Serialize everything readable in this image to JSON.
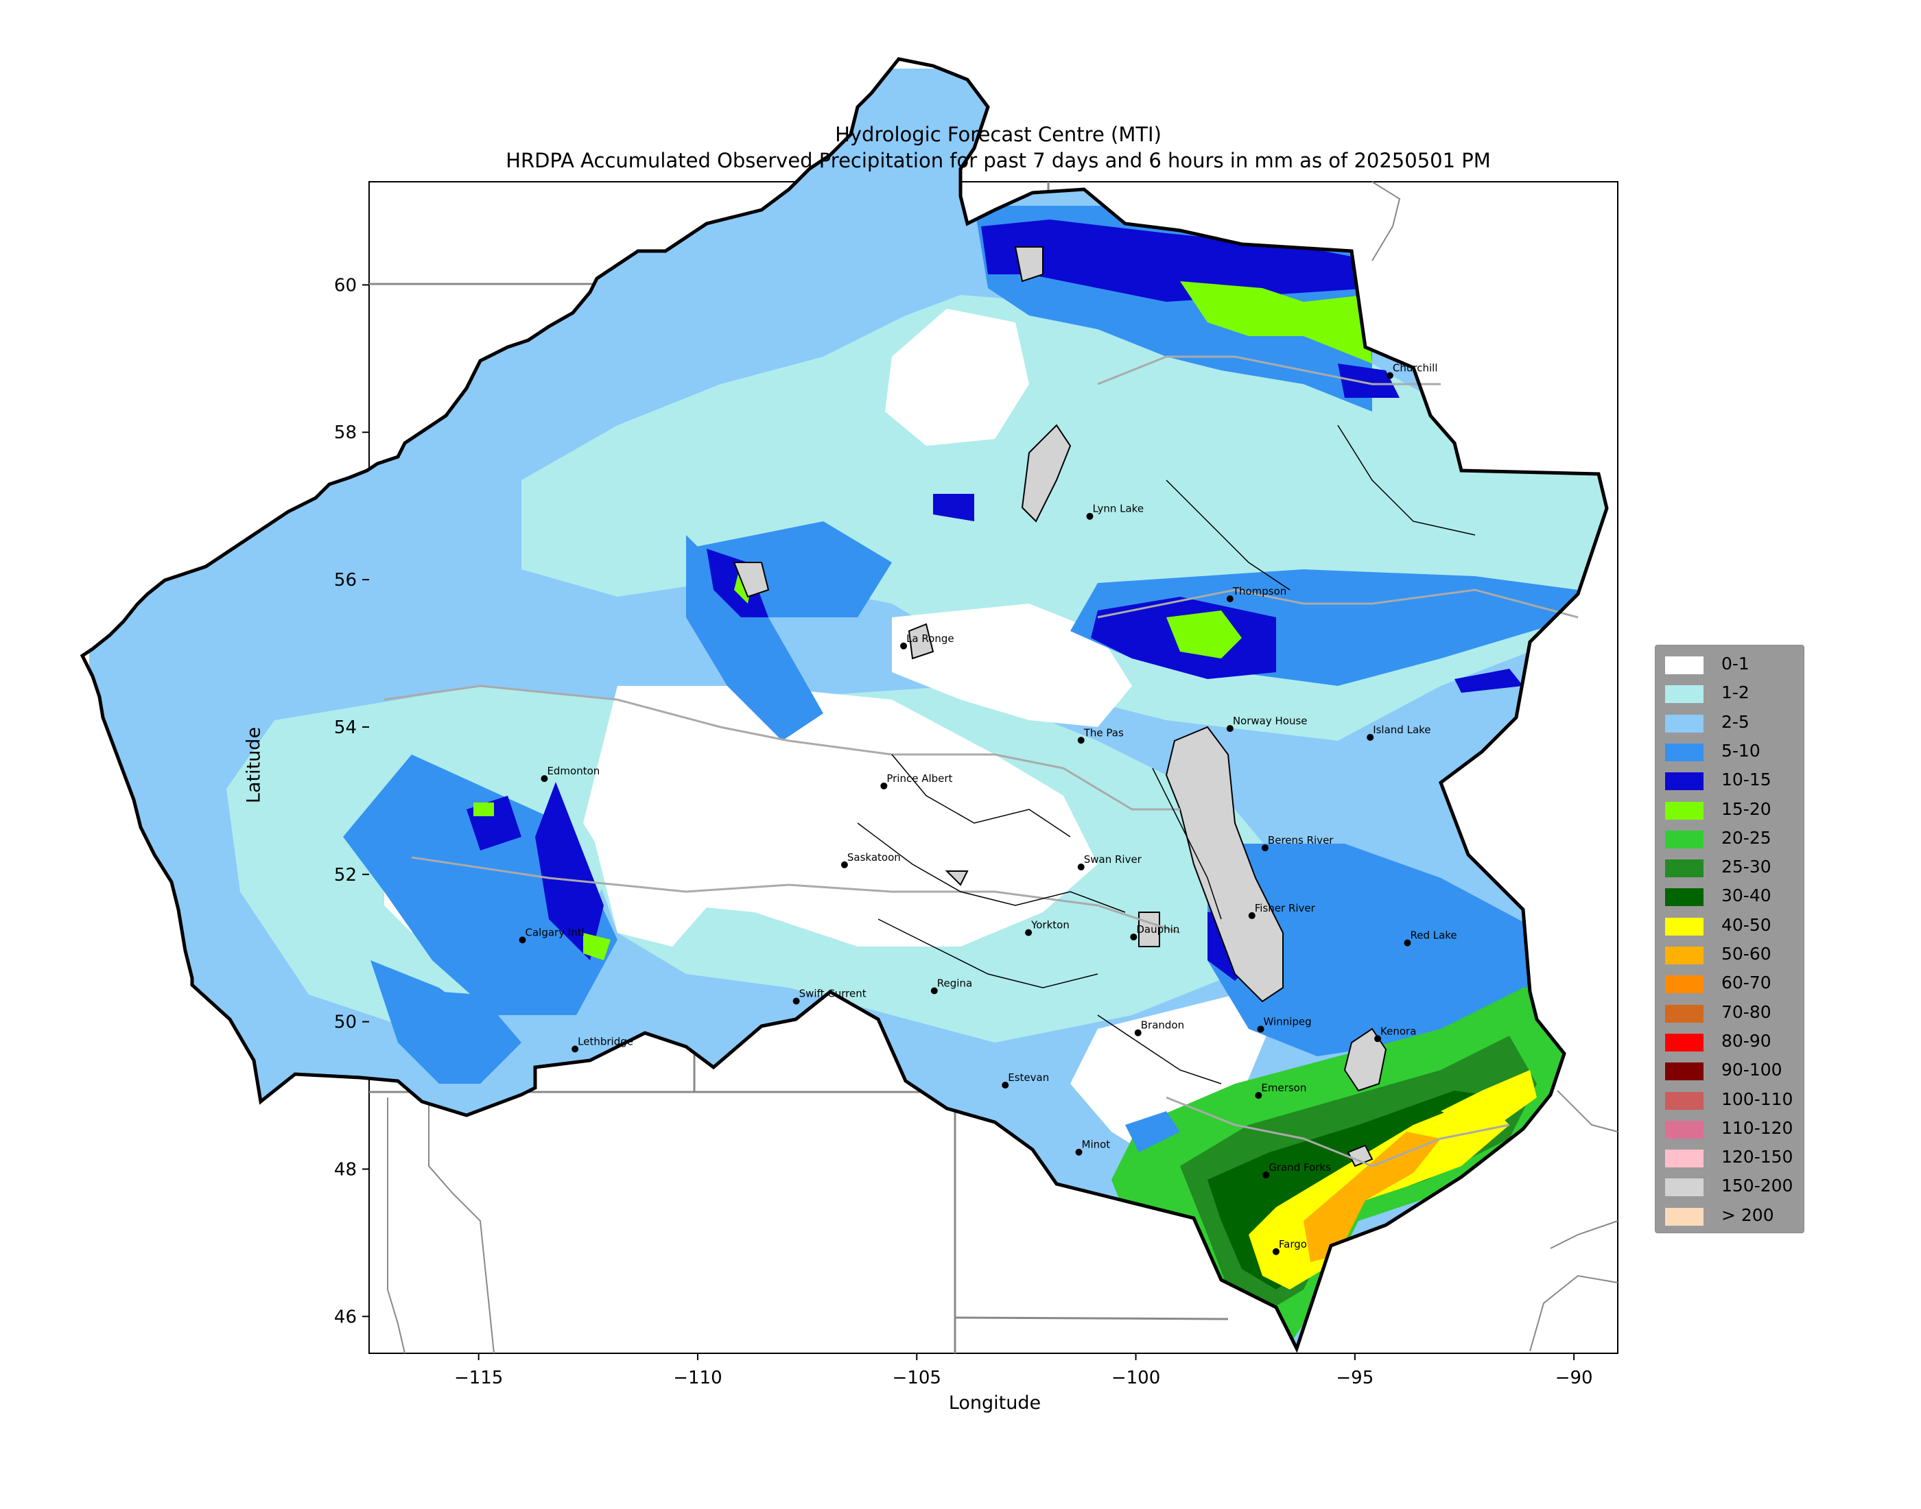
{
  "titles": {
    "line1": "Hydrologic Forecast Centre (MTI)",
    "line2": "HRDPA Accumulated Observed Precipitation for past 7 days and 6 hours in mm as of 20250501 PM"
  },
  "axes": {
    "xlabel": "Longitude",
    "ylabel": "Latitude",
    "xrange": [
      -117.5,
      -89
    ],
    "yrange": [
      45.5,
      61.4
    ],
    "xticks": [
      -115,
      -110,
      -105,
      -100,
      -95,
      -90
    ],
    "xtick_labels": [
      "−115",
      "−110",
      "−105",
      "−100",
      "−95",
      "−90"
    ],
    "yticks": [
      46,
      48,
      50,
      52,
      54,
      56,
      58,
      60
    ],
    "ytick_labels": [
      "46",
      "48",
      "50",
      "52",
      "54",
      "56",
      "58",
      "60"
    ]
  },
  "legend": {
    "placement": "right",
    "items": [
      {
        "label": "0-1",
        "color": "#ffffff"
      },
      {
        "label": "1-2",
        "color": "#b0ecec"
      },
      {
        "label": "2-5",
        "color": "#8ccaf8"
      },
      {
        "label": "5-10",
        "color": "#3592f0"
      },
      {
        "label": "10-15",
        "color": "#0a0ad2"
      },
      {
        "label": "15-20",
        "color": "#7cfc00"
      },
      {
        "label": "20-25",
        "color": "#32cd32"
      },
      {
        "label": "25-30",
        "color": "#228b22"
      },
      {
        "label": "30-40",
        "color": "#006400"
      },
      {
        "label": "40-50",
        "color": "#ffff00"
      },
      {
        "label": "50-60",
        "color": "#ffb000"
      },
      {
        "label": "60-70",
        "color": "#ff8c00"
      },
      {
        "label": "70-80",
        "color": "#d2691e"
      },
      {
        "label": "80-90",
        "color": "#ff0000"
      },
      {
        "label": "90-100",
        "color": "#800000"
      },
      {
        "label": "100-110",
        "color": "#cd5c5c"
      },
      {
        "label": "110-120",
        "color": "#db7093"
      },
      {
        "label": "120-150",
        "color": "#ffc0cb"
      },
      {
        "label": "150-200",
        "color": "#d3d3d3"
      },
      {
        "label": "> 200",
        "color": "#ffdab9"
      }
    ]
  },
  "cities": [
    {
      "name": "Churchill",
      "lon": -94.2,
      "lat": 58.77
    },
    {
      "name": "Lynn Lake",
      "lon": -101.05,
      "lat": 56.86
    },
    {
      "name": "Thompson",
      "lon": -97.85,
      "lat": 55.74
    },
    {
      "name": "La Ronge",
      "lon": -105.3,
      "lat": 55.1
    },
    {
      "name": "The Pas",
      "lon": -101.25,
      "lat": 53.82
    },
    {
      "name": "Norway House",
      "lon": -97.85,
      "lat": 53.98
    },
    {
      "name": "Island Lake",
      "lon": -94.65,
      "lat": 53.86
    },
    {
      "name": "Edmonton",
      "lon": -113.5,
      "lat": 53.3
    },
    {
      "name": "Prince Albert",
      "lon": -105.75,
      "lat": 53.2
    },
    {
      "name": "Saskatoon",
      "lon": -106.65,
      "lat": 52.13
    },
    {
      "name": "Swan River",
      "lon": -101.25,
      "lat": 52.1
    },
    {
      "name": "Berens River",
      "lon": -97.05,
      "lat": 52.36
    },
    {
      "name": "Fisher River",
      "lon": -97.35,
      "lat": 51.44
    },
    {
      "name": "Yorkton",
      "lon": -102.45,
      "lat": 51.21
    },
    {
      "name": "Dauphin",
      "lon": -100.05,
      "lat": 51.15
    },
    {
      "name": "Calgary Intl",
      "lon": -114.0,
      "lat": 51.11
    },
    {
      "name": "Red Lake",
      "lon": -93.8,
      "lat": 51.07
    },
    {
      "name": "Swift Current",
      "lon": -107.75,
      "lat": 50.28
    },
    {
      "name": "Regina",
      "lon": -104.6,
      "lat": 50.42
    },
    {
      "name": "Brandon",
      "lon": -99.95,
      "lat": 49.85
    },
    {
      "name": "Winnipeg",
      "lon": -97.15,
      "lat": 49.9
    },
    {
      "name": "Kenora",
      "lon": -94.48,
      "lat": 49.77
    },
    {
      "name": "Lethbridge",
      "lon": -112.8,
      "lat": 49.63
    },
    {
      "name": "Estevan",
      "lon": -102.98,
      "lat": 49.14
    },
    {
      "name": "Emerson",
      "lon": -97.2,
      "lat": 49.0
    },
    {
      "name": "Minot",
      "lon": -101.3,
      "lat": 48.23
    },
    {
      "name": "Grand Forks",
      "lon": -97.03,
      "lat": 47.92
    },
    {
      "name": "Fargo",
      "lon": -96.8,
      "lat": 46.88
    }
  ]
}
